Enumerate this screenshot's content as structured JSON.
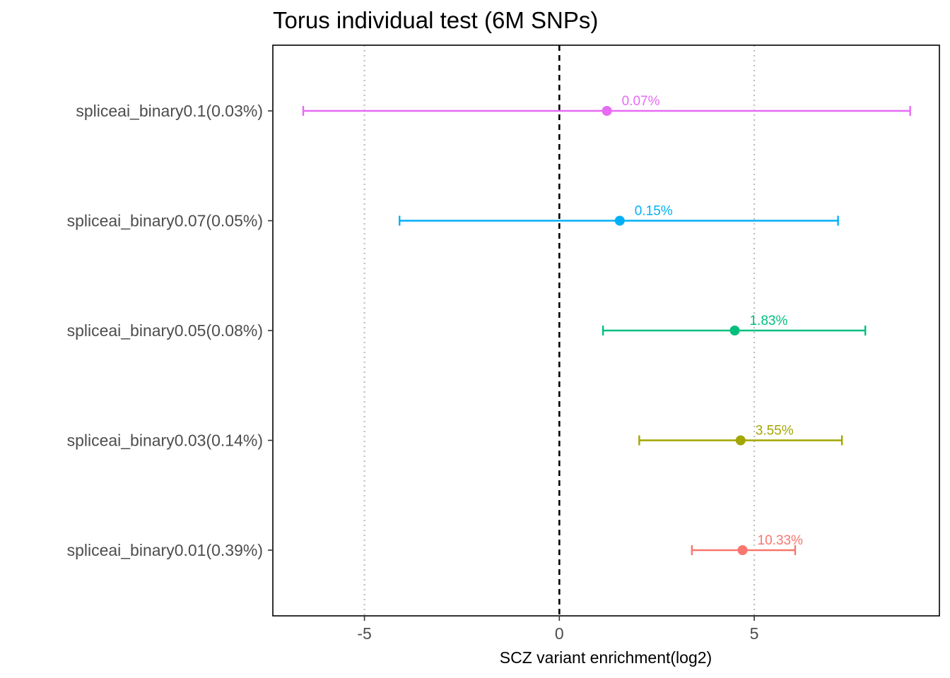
{
  "chart_data": {
    "type": "forest",
    "title": "Torus individual test (6M SNPs)",
    "xlabel": "SCZ variant enrichment(log2)",
    "ylabel": "",
    "xlim": [
      -7.35,
      9.75
    ],
    "x_ticks": [
      -5,
      0,
      5
    ],
    "x_tick_labels": [
      "-5",
      "0",
      "5"
    ],
    "vertical_reference_lines": [
      {
        "x": 0,
        "style": "dashed",
        "color": "#000000"
      },
      {
        "x": -5,
        "style": "dotted",
        "color": "#bdbdbd"
      },
      {
        "x": 5,
        "style": "dotted",
        "color": "#bdbdbd"
      }
    ],
    "grid": false,
    "legend": "none",
    "series": [
      {
        "category": "spliceai_binary0.1(0.03%)",
        "estimate": 1.22,
        "lower": -6.57,
        "upper": 9.0,
        "label": "0.07%",
        "color": "#E76BF3"
      },
      {
        "category": "spliceai_binary0.07(0.05%)",
        "estimate": 1.55,
        "lower": -4.1,
        "upper": 7.15,
        "label": "0.15%",
        "color": "#00B0F6"
      },
      {
        "category": "spliceai_binary0.05(0.08%)",
        "estimate": 4.5,
        "lower": 1.12,
        "upper": 7.85,
        "label": "1.83%",
        "color": "#00BF7D"
      },
      {
        "category": "spliceai_binary0.03(0.14%)",
        "estimate": 4.65,
        "lower": 2.05,
        "upper": 7.25,
        "label": "3.55%",
        "color": "#A3A500"
      },
      {
        "category": "spliceai_binary0.01(0.39%)",
        "estimate": 4.7,
        "lower": 3.4,
        "upper": 6.05,
        "label": "10.33%",
        "color": "#F8766D"
      }
    ]
  }
}
